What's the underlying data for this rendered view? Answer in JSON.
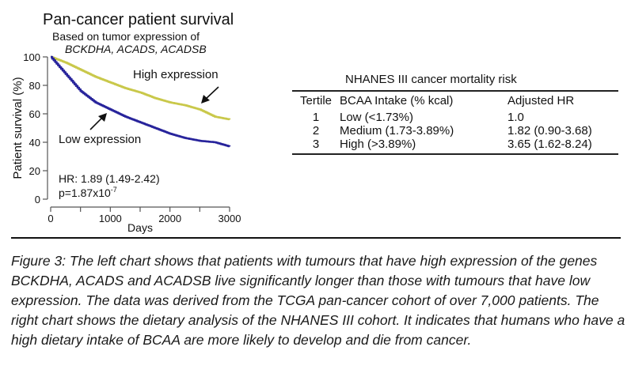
{
  "figure": {
    "title": "Pan-cancer patient survival",
    "subtitle_line1": "Based on tumor expression of",
    "subtitle_line2": "BCKDHA, ACADS, ACADSB"
  },
  "chart_data": {
    "type": "line",
    "title": "Pan-cancer patient survival",
    "subtitle": "Based on tumor expression of BCKDHA, ACADS, ACADSB",
    "xlabel": "Days",
    "ylabel": "Patient survival (%)",
    "xlim": [
      0,
      3000
    ],
    "ylim": [
      0,
      100
    ],
    "xticks": [
      0,
      1000,
      2000,
      3000
    ],
    "xminor_ticks": [
      500,
      1500,
      2500
    ],
    "yticks": [
      0,
      20,
      40,
      60,
      80,
      100
    ],
    "grid": false,
    "series": [
      {
        "name": "High expression",
        "color": "#c9c84a",
        "x": [
          0,
          250,
          500,
          750,
          1000,
          1250,
          1500,
          1750,
          2000,
          2250,
          2500,
          2750,
          3000
        ],
        "y": [
          100,
          96,
          91,
          86,
          82,
          78,
          75,
          71,
          68,
          66,
          63,
          58,
          56
        ]
      },
      {
        "name": "Low expression",
        "color": "#27239b",
        "x": [
          0,
          250,
          500,
          750,
          1000,
          1250,
          1500,
          1750,
          2000,
          2250,
          2500,
          2750,
          3000
        ],
        "y": [
          100,
          88,
          76,
          68,
          63,
          58,
          54,
          50,
          46,
          43,
          41,
          40,
          37
        ]
      }
    ],
    "annotations": [
      {
        "text": "High expression",
        "points_to": "High expression"
      },
      {
        "text": "Low expression",
        "points_to": "Low expression"
      },
      {
        "text": "HR: 1.89 (1.49-2.42)"
      },
      {
        "text": "p=1.87x10",
        "superscript": "-7"
      }
    ]
  },
  "labels": {
    "high_expression": "High expression",
    "low_expression": "Low expression",
    "hr": "HR: 1.89 (1.49-2.42)",
    "p_base": "p=1.87x10",
    "p_exp": "-7"
  },
  "table": {
    "title": "NHANES III cancer mortality risk",
    "headers": [
      "Tertile",
      "BCAA Intake (% kcal)",
      "Adjusted HR"
    ],
    "rows": [
      [
        "1",
        "Low (<1.73%)",
        "1.0"
      ],
      [
        "2",
        "Medium (1.73-3.89%)",
        "1.82 (0.90-3.68)"
      ],
      [
        "3",
        "High (>3.89%)",
        "3.65 (1.62-8.24)"
      ]
    ]
  },
  "caption": "Figure 3: The left chart shows that patients with tumours that have high expression of the genes BCKDHA, ACADS and ACADSB live significantly longer than those with tumours that have low expression. The data was derived from the TCGA pan-cancer cohort of over 7,000 patients. The right chart shows the dietary analysis of the NHANES III cohort. It indicates that humans who have a high dietary intake of BCAA are more likely to develop and die from cancer."
}
